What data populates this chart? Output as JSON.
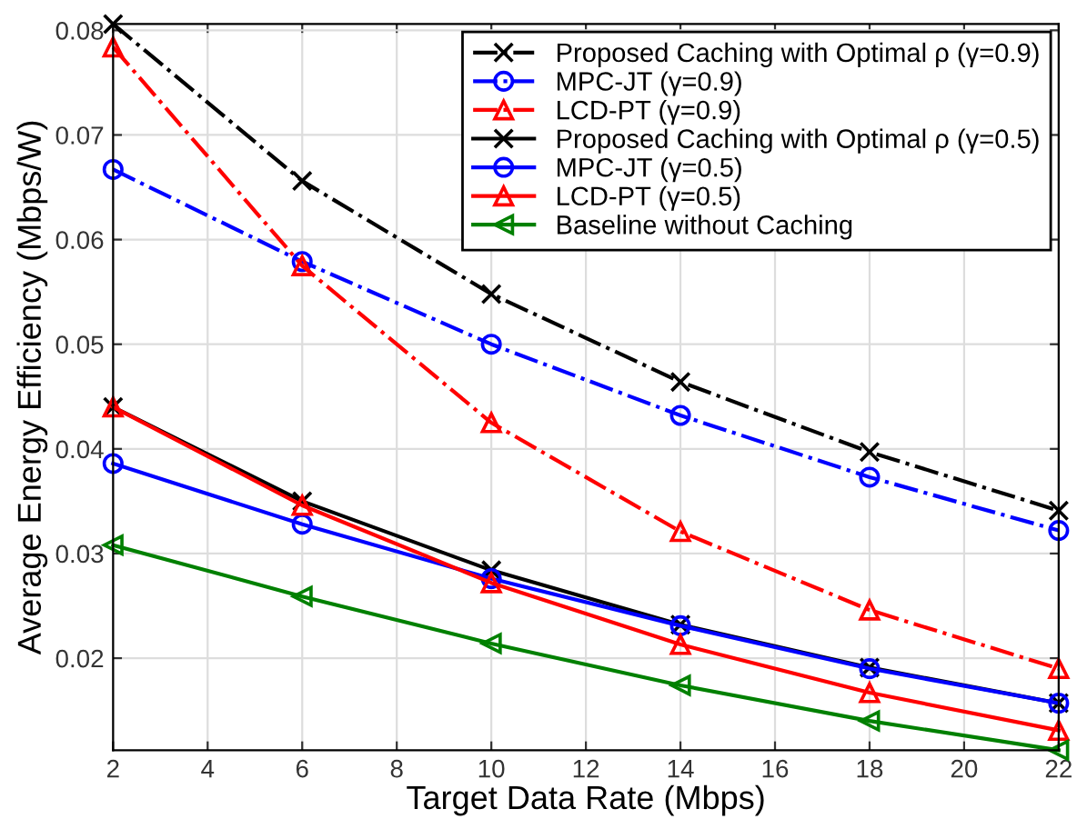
{
  "chart_data": {
    "type": "line",
    "xlabel": "Target Data Rate (Mbps)",
    "ylabel": "Average Energy Efficiency (Mbps/W)",
    "x": [
      2,
      6,
      10,
      14,
      18,
      22
    ],
    "xlim": [
      2,
      22
    ],
    "xticks": [
      2,
      4,
      6,
      8,
      10,
      12,
      14,
      16,
      18,
      20,
      22
    ],
    "ylim": [
      0.0112,
      0.0806
    ],
    "yticks": [
      0.02,
      0.03,
      0.04,
      0.05,
      0.06,
      0.07,
      0.08
    ],
    "grid": true,
    "legend": "top right",
    "series": [
      {
        "name": "Proposed Caching with Optimal ρ (γ=0.9)",
        "color": "#000000",
        "marker": "cross",
        "line_style": "dashdot",
        "values": [
          0.0806,
          0.0656,
          0.0548,
          0.0464,
          0.0397,
          0.0341
        ]
      },
      {
        "name": "MPC-JT (γ=0.9)",
        "color": "#0000ff",
        "marker": "circle",
        "line_style": "dashdot",
        "values": [
          0.0667,
          0.0579,
          0.05,
          0.0432,
          0.0373,
          0.0322
        ]
      },
      {
        "name": "LCD-PT (γ=0.9)",
        "color": "#ff0000",
        "marker": "triangle",
        "line_style": "dashdot",
        "values": [
          0.0784,
          0.0575,
          0.0425,
          0.0321,
          0.0246,
          0.019
        ]
      },
      {
        "name": "Proposed Caching with Optimal ρ (γ=0.5)",
        "color": "#000000",
        "marker": "cross",
        "line_style": "solid",
        "values": [
          0.044,
          0.035,
          0.0284,
          0.0232,
          0.0191,
          0.0157
        ]
      },
      {
        "name": "MPC-JT (γ=0.5)",
        "color": "#0000ff",
        "marker": "circle",
        "line_style": "solid",
        "values": [
          0.0386,
          0.0328,
          0.0276,
          0.0231,
          0.019,
          0.0157
        ]
      },
      {
        "name": "LCD-PT (γ=0.5)",
        "color": "#ff0000",
        "marker": "triangle",
        "line_style": "solid",
        "values": [
          0.044,
          0.0346,
          0.0272,
          0.0213,
          0.0167,
          0.0131
        ]
      },
      {
        "name": "Baseline without Caching",
        "color": "#008000",
        "marker": "triangle-left",
        "line_style": "solid",
        "values": [
          0.0308,
          0.0259,
          0.0214,
          0.0174,
          0.014,
          0.0112
        ]
      }
    ]
  }
}
